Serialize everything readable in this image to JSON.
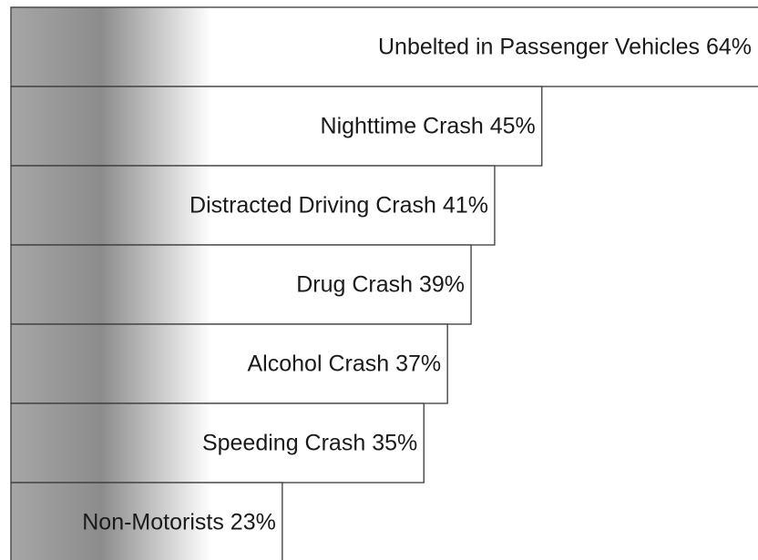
{
  "chart_data": {
    "type": "bar",
    "orientation": "horizontal",
    "categories": [
      "Unbelted in Passenger Vehicles",
      "Nighttime Crash",
      "Distracted Driving Crash",
      "Drug Crash",
      "Alcohol Crash",
      "Speeding Crash",
      "Non-Motorists"
    ],
    "values": [
      64,
      45,
      41,
      39,
      37,
      35,
      23
    ],
    "value_labels": [
      "64%",
      "45%",
      "41%",
      "39%",
      "37%",
      "35%",
      "23%"
    ],
    "color": "#8c8c8c"
  }
}
